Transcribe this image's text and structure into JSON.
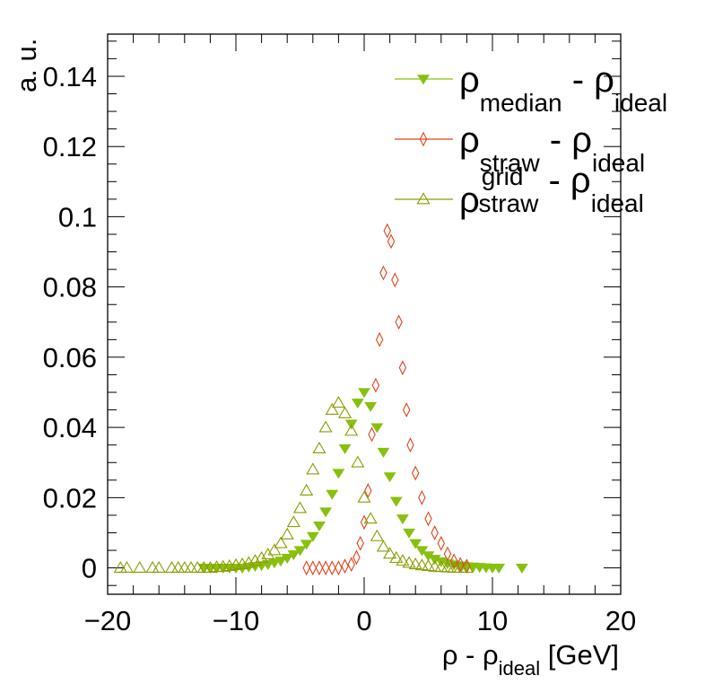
{
  "chart_data": {
    "type": "scatter",
    "xlabel": {
      "main": "ρ - ρ",
      "sub": "ideal",
      "unit": " [GeV]"
    },
    "ylabel": "a. u.",
    "xlim": [
      -20,
      20
    ],
    "ylim": [
      -0.0075,
      0.152
    ],
    "x_ticks": [
      -20,
      -10,
      0,
      10,
      20
    ],
    "x_tick_labels": [
      "−20",
      "−10",
      "0",
      "10",
      "20"
    ],
    "y_ticks": [
      0,
      0.02,
      0.04,
      0.06,
      0.08,
      0.1,
      0.12,
      0.14
    ],
    "y_tick_labels": [
      "0",
      "0.02",
      "0.04",
      "0.06",
      "0.08",
      "0.1",
      "0.12",
      "0.14"
    ],
    "legend_position": "top-right",
    "series": [
      {
        "name": "ρ_median - ρ_ideal",
        "legend": {
          "base": "ρ",
          "sub": "median",
          "sup": "",
          "rest": " - ρ",
          "rest_sub": "ideal"
        },
        "color": "#88c010",
        "marker": "triangle-down-filled",
        "x": [
          -12.5,
          -12,
          -11.5,
          -11,
          -10.5,
          -10,
          -9.5,
          -9,
          -8.5,
          -8,
          -7.5,
          -7,
          -6.5,
          -6,
          -5.5,
          -5,
          -4.5,
          -4,
          -3.5,
          -3,
          -2.5,
          -2,
          -1.5,
          -1,
          -0.5,
          0,
          0.5,
          1,
          1.5,
          2,
          2.5,
          3,
          3.5,
          4,
          4.5,
          5,
          5.5,
          6,
          6.5,
          7,
          7.5,
          8,
          8.5,
          9,
          9.5,
          10,
          10.5,
          12.3
        ],
        "y": [
          0,
          0,
          0,
          0,
          0,
          0,
          0,
          0.0003,
          0.0005,
          0.0007,
          0.001,
          0.0015,
          0.002,
          0.0028,
          0.0038,
          0.005,
          0.0068,
          0.009,
          0.012,
          0.016,
          0.021,
          0.027,
          0.034,
          0.041,
          0.047,
          0.05,
          0.046,
          0.04,
          0.033,
          0.026,
          0.019,
          0.014,
          0.01,
          0.007,
          0.005,
          0.0035,
          0.0025,
          0.0018,
          0.0012,
          0.0009,
          0.0006,
          0.0004,
          0.0003,
          0.0002,
          0.0001,
          0,
          0,
          0
        ]
      },
      {
        "name": "ρ_straw - ρ_ideal",
        "legend": {
          "base": "ρ",
          "sub": "straw",
          "sup": "",
          "rest": " - ρ",
          "rest_sub": "ideal"
        },
        "color": "#e0441c",
        "marker": "diamond-open",
        "x": [
          -4.5,
          -4,
          -3.5,
          -3,
          -2.5,
          -2,
          -1.5,
          -1,
          -0.6,
          -0.3,
          0,
          0.3,
          0.6,
          0.9,
          1.2,
          1.5,
          1.8,
          2.1,
          2.4,
          2.7,
          3,
          3.3,
          3.6,
          4,
          4.5,
          5,
          5.5,
          6,
          6.5,
          7,
          7.5,
          8
        ],
        "y": [
          0,
          0,
          0,
          0,
          0,
          0,
          0.0005,
          0.001,
          0.003,
          0.007,
          0.013,
          0.022,
          0.038,
          0.052,
          0.065,
          0.084,
          0.096,
          0.093,
          0.082,
          0.07,
          0.057,
          0.045,
          0.035,
          0.027,
          0.02,
          0.014,
          0.01,
          0.007,
          0.004,
          0.002,
          0.001,
          0.0005
        ]
      },
      {
        "name": "ρ_straw^grid - ρ_ideal",
        "legend": {
          "base": "ρ",
          "sub": "straw",
          "sup": "grid",
          "rest": " - ρ",
          "rest_sub": "ideal"
        },
        "color": "#8c9c00",
        "marker": "triangle-up-open",
        "x": [
          -19,
          -18.5,
          -17.5,
          -16.5,
          -16,
          -15,
          -14.5,
          -14,
          -13.5,
          -13,
          -12.5,
          -12,
          -11.5,
          -11,
          -10.5,
          -10,
          -9.5,
          -9,
          -8.5,
          -8,
          -7.5,
          -7,
          -6.5,
          -6,
          -5.5,
          -5,
          -4.5,
          -4,
          -3.5,
          -3,
          -2.5,
          -2,
          -1.5,
          -1,
          -0.5,
          0,
          0.5,
          1,
          1.5,
          2,
          2.5,
          3,
          3.5,
          4,
          4.5,
          5,
          5.5,
          6,
          6.5,
          7,
          7.5,
          8
        ],
        "y": [
          0,
          0,
          0,
          0,
          0,
          0,
          0,
          0,
          0,
          0,
          0,
          0,
          0.0002,
          0.0003,
          0.0005,
          0.0008,
          0.001,
          0.0014,
          0.002,
          0.0028,
          0.0038,
          0.005,
          0.007,
          0.0095,
          0.013,
          0.017,
          0.022,
          0.028,
          0.034,
          0.04,
          0.045,
          0.047,
          0.044,
          0.039,
          0.03,
          0.02,
          0.014,
          0.009,
          0.006,
          0.004,
          0.0028,
          0.002,
          0.0014,
          0.001,
          0.0007,
          0.0005,
          0.0003,
          0.0002,
          0.0001,
          0,
          0,
          0
        ]
      }
    ]
  }
}
